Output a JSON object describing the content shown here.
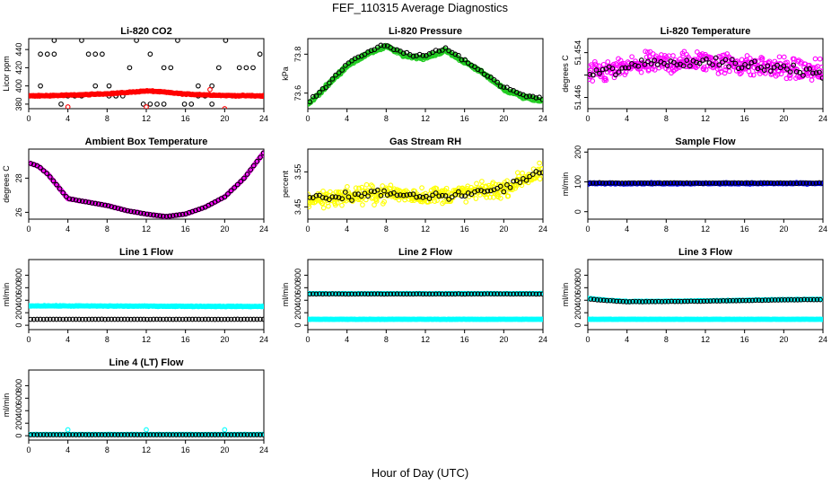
{
  "figure": {
    "title": "FEF_110315  Average Diagnostics",
    "xlabel": "Hour of Day (UTC)"
  },
  "chart_data": [
    {
      "type": "scatter",
      "title": "Li-820 CO2",
      "ylabel": "Licor ppm",
      "xlim": [
        0,
        24
      ],
      "ylim": [
        375,
        452
      ],
      "xticks": [
        "0",
        "4",
        "8",
        "12",
        "16",
        "20",
        "24"
      ],
      "yticks": [
        380,
        400,
        420,
        440
      ],
      "series": [
        {
          "name": "bands",
          "color": "#000000",
          "kind": "bands",
          "x0": 0.5,
          "x1": 24,
          "step": 0.7,
          "levels": [
            380,
            389,
            400,
            420,
            435,
            450
          ],
          "jitter": 0
        },
        {
          "name": "mean",
          "color": "#ff0000",
          "kind": "curve",
          "x0": 0.0,
          "x1": 24,
          "step": 0.08,
          "profile": [
            [
              0,
              389
            ],
            [
              3,
              389.5
            ],
            [
              6,
              390.5
            ],
            [
              9,
              392
            ],
            [
              12,
              394.5
            ],
            [
              13,
              394
            ],
            [
              16,
              391
            ],
            [
              20,
              389.5
            ],
            [
              24,
              389
            ]
          ],
          "jitter": 0.8
        },
        {
          "name": "outliers",
          "color": "#ff0000",
          "kind": "points",
          "points": [
            [
              4,
              377
            ],
            [
              12,
              377
            ],
            [
              18.5,
              396
            ],
            [
              20,
              375
            ]
          ]
        }
      ]
    },
    {
      "type": "scatter",
      "title": "Li-820 Pressure",
      "ylabel": "kPa",
      "xlim": [
        0,
        24
      ],
      "ylim": [
        73.52,
        73.88
      ],
      "xticks": [
        "0",
        "4",
        "8",
        "12",
        "16",
        "20",
        "24"
      ],
      "yticks": [
        73.6,
        73.8
      ],
      "series": [
        {
          "name": "raw",
          "color": "#22cc22",
          "kind": "curve",
          "x0": 0,
          "x1": 24,
          "step": 0.06,
          "profile": [
            [
              0,
              73.54
            ],
            [
              2,
              73.64
            ],
            [
              4,
              73.74
            ],
            [
              6,
              73.8
            ],
            [
              8,
              73.84
            ],
            [
              10,
              73.79
            ],
            [
              12,
              73.78
            ],
            [
              14,
              73.82
            ],
            [
              16,
              73.76
            ],
            [
              18,
              73.7
            ],
            [
              20,
              73.62
            ],
            [
              22,
              73.58
            ],
            [
              24,
              73.56
            ]
          ],
          "jitter": 0.012
        },
        {
          "name": "avg",
          "color": "#000000",
          "kind": "curve",
          "x0": 0.2,
          "x1": 24,
          "step": 0.33,
          "profile": [
            [
              0,
              73.55
            ],
            [
              2,
              73.64
            ],
            [
              4,
              73.75
            ],
            [
              6,
              73.81
            ],
            [
              8,
              73.85
            ],
            [
              10,
              73.8
            ],
            [
              12,
              73.79
            ],
            [
              14,
              73.83
            ],
            [
              16,
              73.77
            ],
            [
              18,
              73.7
            ],
            [
              20,
              73.63
            ],
            [
              22,
              73.59
            ],
            [
              24,
              73.57
            ]
          ],
          "jitter": 0.012
        }
      ]
    },
    {
      "type": "scatter",
      "title": "Li-820 Temperature",
      "ylabel": "degrees C",
      "xlim": [
        0,
        24
      ],
      "ylim": [
        51.444,
        51.4565
      ],
      "xticks": [
        "0",
        "4",
        "8",
        "12",
        "16",
        "20",
        "24"
      ],
      "yticks": [
        51.446,
        51.45,
        51.454
      ],
      "ytick_labels": [
        "51.446",
        "",
        "51.454"
      ],
      "series": [
        {
          "name": "raw",
          "color": "#ff00ff",
          "kind": "curve",
          "x0": 0,
          "x1": 24,
          "step": 0.06,
          "profile": [
            [
              0,
              51.45
            ],
            [
              6,
              51.452
            ],
            [
              12,
              51.4525
            ],
            [
              18,
              51.4515
            ],
            [
              24,
              51.4505
            ]
          ],
          "jitter": 0.0028
        },
        {
          "name": "avg",
          "color": "#000000",
          "kind": "curve",
          "x0": 0.2,
          "x1": 24,
          "step": 0.33,
          "profile": [
            [
              0,
              51.45
            ],
            [
              6,
              51.452
            ],
            [
              12,
              51.4525
            ],
            [
              18,
              51.4515
            ],
            [
              24,
              51.4505
            ]
          ],
          "jitter": 0.0015
        }
      ]
    },
    {
      "type": "scatter",
      "title": "Ambient Box Temperature",
      "ylabel": "degrees C",
      "xlim": [
        0,
        24
      ],
      "ylim": [
        25.6,
        29.7
      ],
      "xticks": [
        "0",
        "4",
        "8",
        "12",
        "16",
        "20",
        "24"
      ],
      "yticks": [
        26,
        28
      ],
      "series": [
        {
          "name": "raw",
          "color": "#ff00ff",
          "kind": "curve",
          "x0": 0,
          "x1": 24,
          "step": 0.08,
          "profile": [
            [
              0,
              28.9
            ],
            [
              1,
              28.7
            ],
            [
              2,
              28.2
            ],
            [
              3,
              27.5
            ],
            [
              4,
              26.8
            ],
            [
              6,
              26.6
            ],
            [
              8,
              26.4
            ],
            [
              10,
              26.1
            ],
            [
              12,
              25.9
            ],
            [
              14,
              25.75
            ],
            [
              16,
              25.9
            ],
            [
              18,
              26.3
            ],
            [
              20,
              26.9
            ],
            [
              22,
              28.0
            ],
            [
              24,
              29.5
            ]
          ],
          "jitter": 0.02
        },
        {
          "name": "avg",
          "color": "#000000",
          "kind": "curve",
          "x0": 0.2,
          "x1": 24,
          "step": 0.33,
          "profile": [
            [
              0,
              28.9
            ],
            [
              1,
              28.7
            ],
            [
              2,
              28.2
            ],
            [
              3,
              27.5
            ],
            [
              4,
              26.8
            ],
            [
              6,
              26.6
            ],
            [
              8,
              26.4
            ],
            [
              10,
              26.1
            ],
            [
              12,
              25.9
            ],
            [
              14,
              25.75
            ],
            [
              16,
              25.9
            ],
            [
              18,
              26.3
            ],
            [
              20,
              26.9
            ],
            [
              22,
              28.0
            ],
            [
              24,
              29.5
            ]
          ],
          "jitter": 0.01
        }
      ]
    },
    {
      "type": "scatter",
      "title": "Gas Stream RH",
      "ylabel": "percent",
      "xlim": [
        0,
        24
      ],
      "ylim": [
        3.415,
        3.615
      ],
      "xticks": [
        "0",
        "4",
        "8",
        "12",
        "16",
        "20",
        "24"
      ],
      "yticks": [
        3.45,
        3.55
      ],
      "series": [
        {
          "name": "raw",
          "color": "#ffff00",
          "kind": "curve",
          "x0": 0,
          "x1": 24,
          "step": 0.06,
          "profile": [
            [
              0,
              3.47
            ],
            [
              4,
              3.48
            ],
            [
              8,
              3.49
            ],
            [
              12,
              3.48
            ],
            [
              16,
              3.49
            ],
            [
              20,
              3.5
            ],
            [
              22,
              3.53
            ],
            [
              24,
              3.55
            ]
          ],
          "jitter": 0.035
        },
        {
          "name": "avg",
          "color": "#000000",
          "kind": "curve",
          "x0": 0.2,
          "x1": 24,
          "step": 0.33,
          "profile": [
            [
              0,
              3.47
            ],
            [
              4,
              3.48
            ],
            [
              8,
              3.49
            ],
            [
              12,
              3.48
            ],
            [
              16,
              3.49
            ],
            [
              20,
              3.5
            ],
            [
              22,
              3.53
            ],
            [
              24,
              3.55
            ]
          ],
          "jitter": 0.02
        }
      ]
    },
    {
      "type": "scatter",
      "title": "Sample Flow",
      "ylabel": "ml/min",
      "xlim": [
        0,
        24
      ],
      "ylim": [
        -25,
        210
      ],
      "xticks": [
        "0",
        "4",
        "8",
        "12",
        "16",
        "20",
        "24"
      ],
      "yticks": [
        0,
        100,
        200
      ],
      "series": [
        {
          "name": "raw",
          "color": "#0000ff",
          "kind": "curve",
          "x0": 0,
          "x1": 24,
          "step": 0.06,
          "profile": [
            [
              0,
              95
            ],
            [
              24,
              95
            ]
          ],
          "jitter": 3
        },
        {
          "name": "avg",
          "color": "#000000",
          "kind": "curve",
          "x0": 0.2,
          "x1": 24,
          "step": 0.33,
          "profile": [
            [
              0,
              96
            ],
            [
              24,
              96
            ]
          ],
          "jitter": 1.5
        }
      ]
    },
    {
      "type": "scatter",
      "title": "Line 1 Flow",
      "ylabel": "ml/min",
      "xlim": [
        0,
        24
      ],
      "ylim": [
        -70,
        1050
      ],
      "xticks": [
        "0",
        "4",
        "8",
        "12",
        "16",
        "20",
        "24"
      ],
      "yticks": [
        0,
        200,
        400,
        600,
        800
      ],
      "series": [
        {
          "name": "a",
          "color": "#00ffff",
          "kind": "curve",
          "x0": 0,
          "x1": 24,
          "step": 0.08,
          "profile": [
            [
              0,
              310
            ],
            [
              24,
              300
            ]
          ],
          "jitter": 8
        },
        {
          "name": "b",
          "color": "#000000",
          "kind": "curve",
          "x0": 0.2,
          "x1": 24,
          "step": 0.33,
          "profile": [
            [
              0,
              95
            ],
            [
              24,
              95
            ]
          ],
          "jitter": 2
        }
      ]
    },
    {
      "type": "scatter",
      "title": "Line 2 Flow",
      "ylabel": "ml/min",
      "xlim": [
        0,
        24
      ],
      "ylim": [
        -70,
        1050
      ],
      "xticks": [
        "0",
        "4",
        "8",
        "12",
        "16",
        "20",
        "24"
      ],
      "yticks": [
        0,
        200,
        400,
        600,
        800
      ],
      "series": [
        {
          "name": "a",
          "color": "#00ffff",
          "kind": "curve",
          "x0": 0,
          "x1": 24,
          "step": 0.08,
          "profile": [
            [
              0,
              95
            ],
            [
              24,
              95
            ]
          ],
          "jitter": 5
        },
        {
          "name": "b",
          "color": "#00ffff",
          "kind": "curve",
          "x0": 0,
          "x1": 24,
          "step": 0.1,
          "profile": [
            [
              0,
              505
            ],
            [
              24,
              505
            ]
          ],
          "jitter": 6
        },
        {
          "name": "c",
          "color": "#000000",
          "kind": "curve",
          "x0": 0.2,
          "x1": 24,
          "step": 0.33,
          "profile": [
            [
              0,
              500
            ],
            [
              24,
              500
            ]
          ],
          "jitter": 3
        }
      ]
    },
    {
      "type": "scatter",
      "title": "Line 3 Flow",
      "ylabel": "ml/min",
      "xlim": [
        0,
        24
      ],
      "ylim": [
        -70,
        1050
      ],
      "xticks": [
        "0",
        "4",
        "8",
        "12",
        "16",
        "20",
        "24"
      ],
      "yticks": [
        0,
        200,
        400,
        600,
        800
      ],
      "series": [
        {
          "name": "a",
          "color": "#00ffff",
          "kind": "curve",
          "x0": 0,
          "x1": 24,
          "step": 0.08,
          "profile": [
            [
              0,
              95
            ],
            [
              24,
              95
            ]
          ],
          "jitter": 4
        },
        {
          "name": "b",
          "color": "#00ffff",
          "kind": "curve",
          "x0": 0,
          "x1": 24,
          "step": 0.1,
          "profile": [
            [
              0,
              430
            ],
            [
              2,
              400
            ],
            [
              4,
              380
            ],
            [
              12,
              390
            ],
            [
              20,
              410
            ],
            [
              24,
              415
            ]
          ],
          "jitter": 8
        },
        {
          "name": "c",
          "color": "#000000",
          "kind": "curve",
          "x0": 0.3,
          "x1": 24,
          "step": 0.33,
          "profile": [
            [
              0,
              420
            ],
            [
              2,
              395
            ],
            [
              4,
              375
            ],
            [
              12,
              385
            ],
            [
              20,
              405
            ],
            [
              24,
              410
            ]
          ],
          "jitter": 4
        }
      ]
    },
    {
      "type": "scatter",
      "title": "Line 4 (LT) Flow",
      "ylabel": "ml/min",
      "xlim": [
        0,
        24
      ],
      "ylim": [
        -70,
        1050
      ],
      "xticks": [
        "0",
        "4",
        "8",
        "12",
        "16",
        "20",
        "24"
      ],
      "yticks": [
        0,
        200,
        400,
        600,
        800
      ],
      "series": [
        {
          "name": "a",
          "color": "#00ffff",
          "kind": "curve",
          "x0": 0,
          "x1": 24,
          "step": 0.08,
          "profile": [
            [
              0,
              20
            ],
            [
              24,
              20
            ]
          ],
          "jitter": 3
        },
        {
          "name": "spikes",
          "color": "#00ffff",
          "kind": "points",
          "points": [
            [
              4,
              95
            ],
            [
              12,
              95
            ],
            [
              20,
              95
            ]
          ]
        },
        {
          "name": "b",
          "color": "#000000",
          "kind": "curve",
          "x0": 0.2,
          "x1": 24,
          "step": 0.33,
          "profile": [
            [
              0,
              15
            ],
            [
              24,
              15
            ]
          ],
          "jitter": 1
        }
      ]
    }
  ]
}
